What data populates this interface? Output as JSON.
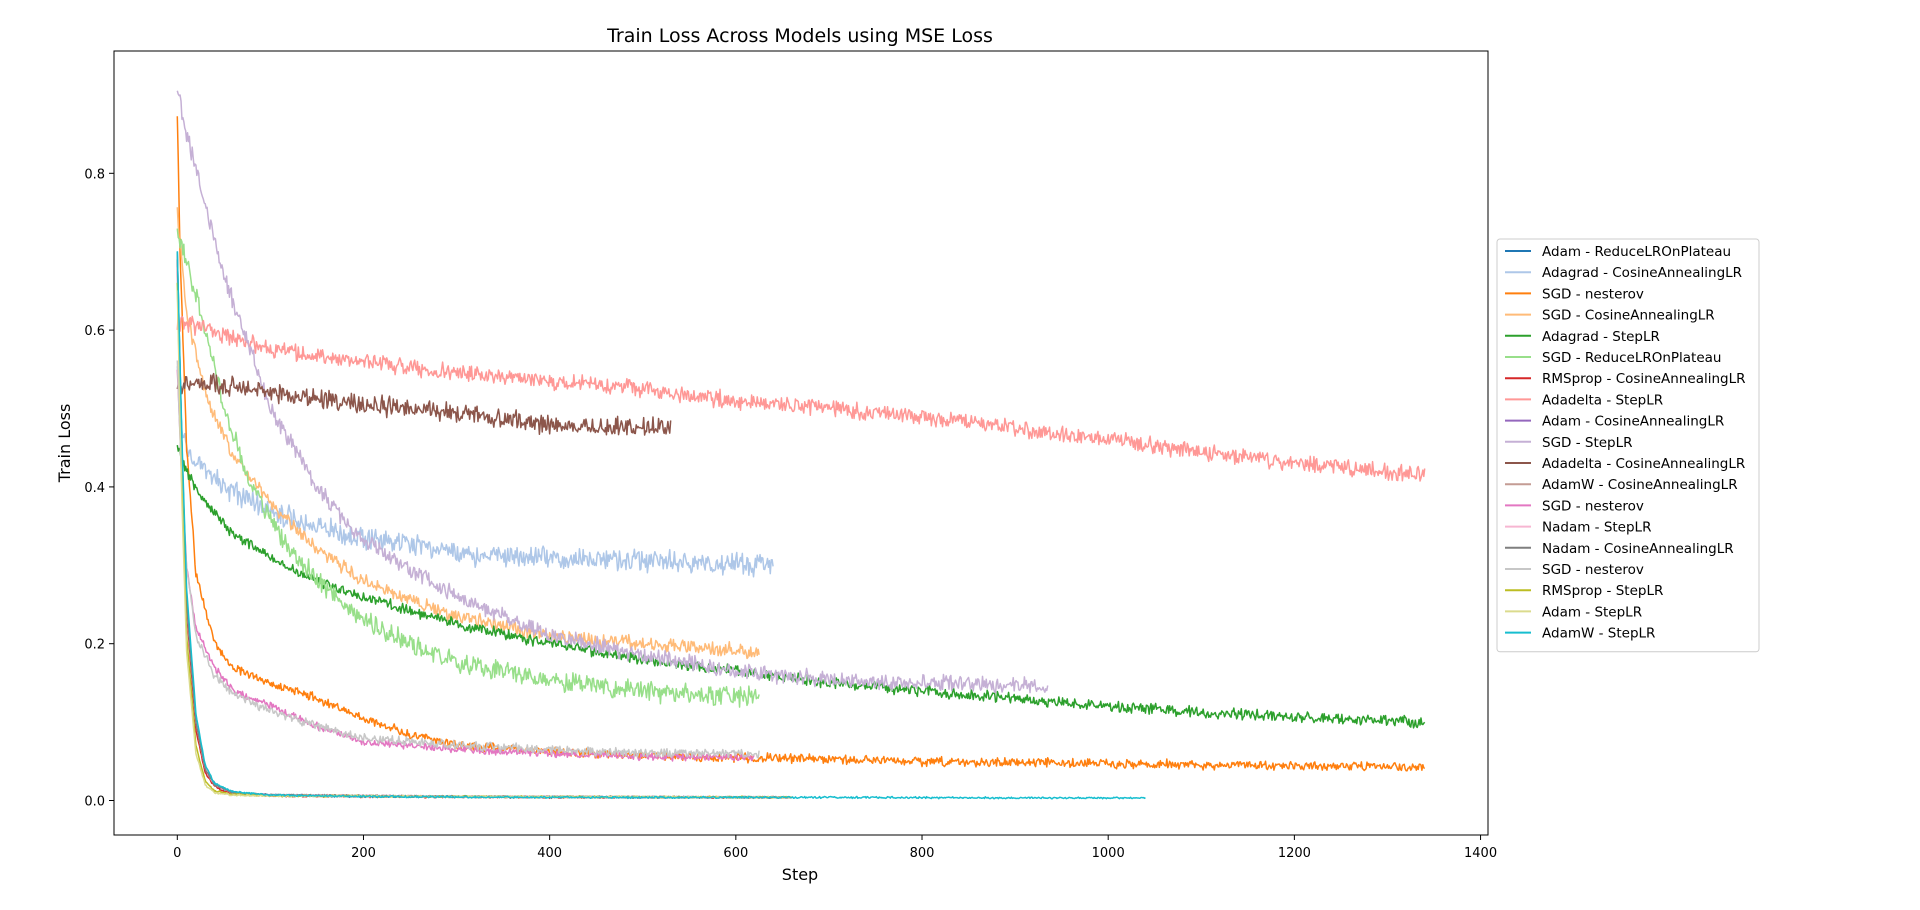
{
  "chart_data": {
    "type": "line",
    "title": "Train Loss Across Models using MSE Loss",
    "xlabel": "Step",
    "ylabel": "Train Loss",
    "xlim": [
      -68,
      1408
    ],
    "ylim": [
      -0.044,
      0.956
    ],
    "xticks": [
      0,
      200,
      400,
      600,
      800,
      1000,
      1200,
      1400
    ],
    "yticks": [
      0.0,
      0.2,
      0.4,
      0.6,
      0.8
    ],
    "xtick_labels": [
      "0",
      "200",
      "400",
      "600",
      "800",
      "1000",
      "1200",
      "1400"
    ],
    "ytick_labels": [
      "0.0",
      "0.2",
      "0.4",
      "0.6",
      "0.8"
    ],
    "grid": false,
    "legend_position": "right",
    "series": [
      {
        "name": "Adam - ReduceLROnPlateau",
        "color": "#1f77b4",
        "x": [
          0,
          5,
          10,
          20,
          30,
          40,
          50,
          70,
          100,
          150,
          200,
          300,
          500,
          660
        ],
        "y": [
          0.7,
          0.45,
          0.25,
          0.1,
          0.04,
          0.022,
          0.014,
          0.009,
          0.007,
          0.006,
          0.005,
          0.005,
          0.004,
          0.004
        ],
        "noise": 0.001
      },
      {
        "name": "Adagrad - CosineAnnealingLR",
        "color": "#aec7e8",
        "x": [
          0,
          5,
          20,
          50,
          100,
          150,
          200,
          300,
          400,
          500,
          640
        ],
        "y": [
          0.55,
          0.47,
          0.43,
          0.4,
          0.37,
          0.35,
          0.335,
          0.315,
          0.31,
          0.305,
          0.3
        ],
        "noise": 0.012
      },
      {
        "name": "SGD - nesterov",
        "color": "#ff7f0e",
        "x": [
          0,
          3,
          10,
          20,
          40,
          60,
          80,
          100,
          150,
          200,
          250,
          300,
          400,
          500,
          600,
          800,
          1000,
          1200,
          1340
        ],
        "y": [
          0.87,
          0.7,
          0.45,
          0.29,
          0.2,
          0.17,
          0.16,
          0.15,
          0.13,
          0.105,
          0.085,
          0.07,
          0.062,
          0.058,
          0.055,
          0.05,
          0.047,
          0.044,
          0.043
        ],
        "noise": 0.005
      },
      {
        "name": "SGD - CosineAnnealingLR",
        "color": "#ffbb78",
        "x": [
          0,
          10,
          30,
          60,
          100,
          150,
          200,
          300,
          400,
          500,
          625
        ],
        "y": [
          0.75,
          0.62,
          0.52,
          0.44,
          0.38,
          0.32,
          0.28,
          0.235,
          0.21,
          0.2,
          0.19
        ],
        "noise": 0.008
      },
      {
        "name": "Adagrad - StepLR",
        "color": "#2ca02c",
        "x": [
          0,
          10,
          30,
          60,
          100,
          150,
          200,
          300,
          400,
          500,
          600,
          700,
          800,
          900,
          1000,
          1100,
          1200,
          1340
        ],
        "y": [
          0.45,
          0.42,
          0.38,
          0.34,
          0.31,
          0.28,
          0.26,
          0.225,
          0.2,
          0.18,
          0.165,
          0.15,
          0.14,
          0.13,
          0.12,
          0.113,
          0.107,
          0.1
        ],
        "noise": 0.006
      },
      {
        "name": "SGD - ReduceLROnPlateau",
        "color": "#98df8a",
        "x": [
          0,
          10,
          30,
          50,
          80,
          120,
          160,
          200,
          250,
          300,
          400,
          500,
          625
        ],
        "y": [
          0.72,
          0.69,
          0.6,
          0.5,
          0.4,
          0.32,
          0.27,
          0.23,
          0.2,
          0.175,
          0.155,
          0.14,
          0.13
        ],
        "noise": 0.011
      },
      {
        "name": "RMSprop - CosineAnnealingLR",
        "color": "#d62728",
        "x": [
          0,
          5,
          10,
          20,
          30,
          40,
          50,
          70,
          100,
          200,
          400,
          660
        ],
        "y": [
          0.68,
          0.43,
          0.24,
          0.09,
          0.035,
          0.018,
          0.012,
          0.008,
          0.006,
          0.005,
          0.004,
          0.004
        ],
        "noise": 0.001
      },
      {
        "name": "Adadelta - StepLR",
        "color": "#ff9896",
        "x": [
          0,
          20,
          60,
          100,
          200,
          300,
          400,
          500,
          600,
          700,
          800,
          900,
          1000,
          1100,
          1200,
          1340
        ],
        "y": [
          0.61,
          0.605,
          0.59,
          0.575,
          0.56,
          0.545,
          0.535,
          0.525,
          0.51,
          0.5,
          0.49,
          0.475,
          0.46,
          0.445,
          0.43,
          0.415
        ],
        "noise": 0.009
      },
      {
        "name": "Adam - CosineAnnealingLR",
        "color": "#9467bd",
        "x": [
          0,
          5,
          10,
          20,
          30,
          40,
          60,
          100,
          300,
          660
        ],
        "y": [
          0.69,
          0.44,
          0.25,
          0.1,
          0.04,
          0.02,
          0.01,
          0.007,
          0.005,
          0.004
        ],
        "noise": 0.001
      },
      {
        "name": "SGD - StepLR",
        "color": "#c5b0d5",
        "x": [
          0,
          10,
          30,
          50,
          80,
          100,
          150,
          200,
          300,
          400,
          500,
          600,
          700,
          800,
          935
        ],
        "y": [
          0.91,
          0.85,
          0.76,
          0.67,
          0.57,
          0.5,
          0.4,
          0.33,
          0.26,
          0.21,
          0.185,
          0.165,
          0.155,
          0.15,
          0.145
        ],
        "noise": 0.009
      },
      {
        "name": "Adadelta - CosineAnnealingLR",
        "color": "#8c564b",
        "x": [
          0,
          20,
          100,
          200,
          300,
          400,
          530
        ],
        "y": [
          0.53,
          0.535,
          0.52,
          0.505,
          0.495,
          0.48,
          0.475
        ],
        "noise": 0.011
      },
      {
        "name": "AdamW - CosineAnnealingLR",
        "color": "#c49c94",
        "x": [
          0,
          5,
          10,
          20,
          30,
          40,
          60,
          100,
          300,
          660
        ],
        "y": [
          0.7,
          0.45,
          0.26,
          0.1,
          0.04,
          0.02,
          0.01,
          0.007,
          0.005,
          0.004
        ],
        "noise": 0.001
      },
      {
        "name": "SGD - nesterov",
        "color": "#e377c2",
        "x": [
          0,
          5,
          10,
          20,
          40,
          60,
          100,
          150,
          200,
          300,
          400,
          500,
          620
        ],
        "y": [
          0.55,
          0.4,
          0.3,
          0.22,
          0.17,
          0.14,
          0.12,
          0.095,
          0.075,
          0.065,
          0.06,
          0.056,
          0.055
        ],
        "noise": 0.004
      },
      {
        "name": "Nadam - StepLR",
        "color": "#f7b6d2",
        "x": [
          0,
          5,
          10,
          20,
          30,
          40,
          60,
          100,
          300,
          655
        ],
        "y": [
          0.68,
          0.44,
          0.25,
          0.1,
          0.04,
          0.02,
          0.01,
          0.007,
          0.005,
          0.004
        ],
        "noise": 0.001
      },
      {
        "name": "Nadam - CosineAnnealingLR",
        "color": "#7f7f7f",
        "x": [
          0,
          5,
          10,
          20,
          30,
          40,
          60,
          100,
          300,
          660
        ],
        "y": [
          0.69,
          0.45,
          0.25,
          0.1,
          0.04,
          0.02,
          0.01,
          0.007,
          0.005,
          0.004
        ],
        "noise": 0.001
      },
      {
        "name": "SGD - nesterov",
        "color": "#c7c7c7",
        "x": [
          0,
          5,
          10,
          20,
          40,
          60,
          100,
          150,
          200,
          300,
          400,
          500,
          625
        ],
        "y": [
          0.56,
          0.4,
          0.3,
          0.21,
          0.16,
          0.135,
          0.115,
          0.095,
          0.08,
          0.07,
          0.065,
          0.06,
          0.06
        ],
        "noise": 0.005
      },
      {
        "name": "RMSprop - StepLR",
        "color": "#bcbd22",
        "x": [
          0,
          5,
          10,
          20,
          30,
          40,
          60,
          100,
          300,
          660
        ],
        "y": [
          0.66,
          0.4,
          0.21,
          0.07,
          0.025,
          0.012,
          0.008,
          0.006,
          0.005,
          0.004
        ],
        "noise": 0.001
      },
      {
        "name": "Adam - StepLR",
        "color": "#dbdb8d",
        "x": [
          0,
          5,
          10,
          20,
          30,
          40,
          60,
          100,
          300,
          660
        ],
        "y": [
          0.65,
          0.38,
          0.19,
          0.06,
          0.02,
          0.01,
          0.007,
          0.006,
          0.005,
          0.004
        ],
        "noise": 0.001
      },
      {
        "name": "AdamW - StepLR",
        "color": "#17becf",
        "x": [
          0,
          5,
          10,
          20,
          30,
          40,
          60,
          100,
          200,
          400,
          700,
          1040
        ],
        "y": [
          0.7,
          0.46,
          0.27,
          0.11,
          0.045,
          0.022,
          0.011,
          0.007,
          0.005,
          0.004,
          0.004,
          0.003
        ],
        "noise": 0.001
      }
    ]
  }
}
